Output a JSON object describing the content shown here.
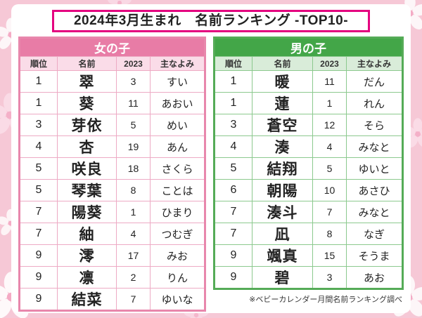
{
  "title": "2024年3月生まれ　名前ランキング -TOP10-",
  "footnote": "※ベビーカレンダー月間名前ランキング調べ",
  "columns": [
    "順位",
    "名前",
    "2023",
    "主なよみ"
  ],
  "girls": {
    "header": "女の子",
    "rows": [
      {
        "rank": "1",
        "name": "翠",
        "y2023": "3",
        "reading": "すい"
      },
      {
        "rank": "1",
        "name": "葵",
        "y2023": "11",
        "reading": "あおい"
      },
      {
        "rank": "3",
        "name": "芽依",
        "y2023": "5",
        "reading": "めい"
      },
      {
        "rank": "4",
        "name": "杏",
        "y2023": "19",
        "reading": "あん"
      },
      {
        "rank": "5",
        "name": "咲良",
        "y2023": "18",
        "reading": "さくら"
      },
      {
        "rank": "5",
        "name": "琴葉",
        "y2023": "8",
        "reading": "ことは"
      },
      {
        "rank": "7",
        "name": "陽葵",
        "y2023": "1",
        "reading": "ひまり"
      },
      {
        "rank": "7",
        "name": "紬",
        "y2023": "4",
        "reading": "つむぎ"
      },
      {
        "rank": "9",
        "name": "澪",
        "y2023": "17",
        "reading": "みお"
      },
      {
        "rank": "9",
        "name": "凛",
        "y2023": "2",
        "reading": "りん"
      },
      {
        "rank": "9",
        "name": "結菜",
        "y2023": "7",
        "reading": "ゆいな"
      }
    ]
  },
  "boys": {
    "header": "男の子",
    "rows": [
      {
        "rank": "1",
        "name": "暖",
        "y2023": "11",
        "reading": "だん"
      },
      {
        "rank": "1",
        "name": "蓮",
        "y2023": "1",
        "reading": "れん"
      },
      {
        "rank": "3",
        "name": "蒼空",
        "y2023": "12",
        "reading": "そら"
      },
      {
        "rank": "4",
        "name": "湊",
        "y2023": "4",
        "reading": "みなと"
      },
      {
        "rank": "5",
        "name": "結翔",
        "y2023": "5",
        "reading": "ゆいと"
      },
      {
        "rank": "6",
        "name": "朝陽",
        "y2023": "10",
        "reading": "あさひ"
      },
      {
        "rank": "7",
        "name": "湊斗",
        "y2023": "7",
        "reading": "みなと"
      },
      {
        "rank": "7",
        "name": "凪",
        "y2023": "8",
        "reading": "なぎ"
      },
      {
        "rank": "9",
        "name": "颯真",
        "y2023": "15",
        "reading": "そうま"
      },
      {
        "rank": "9",
        "name": "碧",
        "y2023": "3",
        "reading": "あお"
      }
    ]
  },
  "colors": {
    "title_border": "#e4007f",
    "girls_accent": "#e87ca6",
    "girls_light": "#fadce8",
    "boys_accent": "#43a648",
    "boys_light": "#d9ecd9",
    "background_pink": "#f6c8d6"
  }
}
